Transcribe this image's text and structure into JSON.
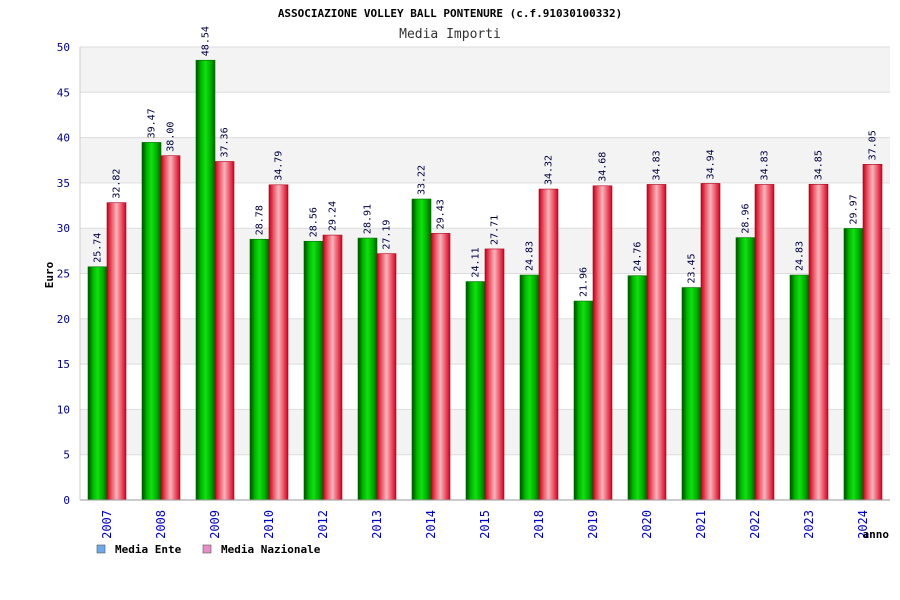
{
  "chart_data": {
    "type": "bar",
    "title": "ASSOCIAZIONE VOLLEY BALL PONTENURE (c.f.91030100332)",
    "subtitle": "Media Importi",
    "ylabel": "Euro",
    "xlabel": "anno",
    "ylim": [
      0,
      50
    ],
    "yticks": [
      "0",
      "5",
      "10",
      "15",
      "20",
      "25",
      "30",
      "35",
      "40",
      "45",
      "50"
    ],
    "grid": true,
    "legend_position": "bottom-left",
    "categories": [
      "2007",
      "2008",
      "2009",
      "2010",
      "2012",
      "2013",
      "2014",
      "2015",
      "2018",
      "2019",
      "2020",
      "2021",
      "2022",
      "2023",
      "2024"
    ],
    "series": [
      {
        "name": "Media Ente",
        "color": "#00b000",
        "legend_color": "#6fa8e8",
        "values": [
          25.74,
          39.47,
          48.54,
          28.78,
          28.56,
          28.91,
          33.22,
          24.11,
          24.83,
          21.96,
          24.76,
          23.45,
          28.96,
          24.83,
          29.97
        ],
        "labels": [
          "25.74",
          "39.47",
          "48.54",
          "28.78",
          "28.56",
          "28.91",
          "33.22",
          "24.11",
          "24.83",
          "21.96",
          "24.76",
          "23.45",
          "28.96",
          "24.83",
          "29.97"
        ]
      },
      {
        "name": "Media Nazionale",
        "color": "#e02030",
        "legend_color": "#e88fc8",
        "values": [
          32.82,
          38.0,
          37.36,
          34.79,
          29.24,
          27.19,
          29.43,
          27.71,
          34.32,
          34.68,
          34.83,
          34.94,
          34.83,
          34.85,
          37.05
        ],
        "labels": [
          "32.82",
          "38.00",
          "37.36",
          "34.79",
          "29.24",
          "27.19",
          "29.43",
          "27.71",
          "34.32",
          "34.68",
          "34.83",
          "34.94",
          "34.83",
          "34.85",
          "37.05"
        ]
      }
    ]
  }
}
